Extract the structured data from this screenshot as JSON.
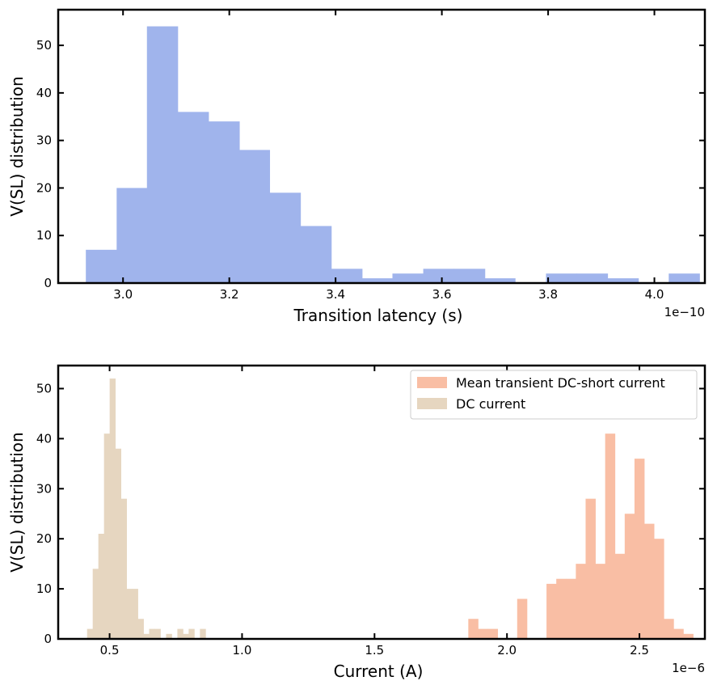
{
  "chart_data": [
    {
      "type": "bar",
      "xlabel": "Transition latency (s)",
      "ylabel": "V(SL) distribution",
      "x_offset_label": "1e−10",
      "xlim": [
        2.878,
        4.095
      ],
      "ylim": [
        0,
        57.5
      ],
      "xticks": [
        "3.0",
        "3.2",
        "3.4",
        "3.6",
        "3.8",
        "4.0"
      ],
      "yticks": [
        "0",
        "10",
        "20",
        "30",
        "40",
        "50"
      ],
      "bin_edges": [
        2.93,
        2.988,
        3.045,
        3.103,
        3.161,
        3.219,
        3.276,
        3.334,
        3.392,
        3.45,
        3.507,
        3.565,
        3.623,
        3.681,
        3.738,
        3.796,
        3.854,
        3.912,
        3.97,
        4.027,
        4.085
      ],
      "series": [
        {
          "color": "#a0b4ec",
          "values": [
            7,
            20,
            54,
            36,
            34,
            28,
            19,
            12,
            3,
            1,
            2,
            3,
            3,
            1,
            0,
            2,
            2,
            1,
            0,
            2
          ]
        }
      ]
    },
    {
      "type": "bar",
      "xlabel": "Current (A)",
      "ylabel": "V(SL) distribution",
      "x_offset_label": "1e−6",
      "xlim": [
        0.306,
        2.747
      ],
      "ylim": [
        0,
        54.6
      ],
      "xticks": [
        "0.5",
        "1.0",
        "1.5",
        "2.0",
        "2.5"
      ],
      "yticks": [
        "0",
        "10",
        "20",
        "30",
        "40",
        "50"
      ],
      "legend": {
        "position": "upper right"
      },
      "series": [
        {
          "name": "Mean transient DC-short current",
          "color": "#f9bea4",
          "bin_start": 1.854,
          "bin_width": 0.0369,
          "values": [
            4,
            2,
            2,
            0,
            0,
            8,
            0,
            0,
            11,
            12,
            12,
            15,
            28,
            15,
            41,
            17,
            25,
            36,
            23,
            20,
            4,
            2,
            1
          ]
        },
        {
          "name": "DC current",
          "color": "#e6d6c0",
          "bin_start": 0.415,
          "bin_width": 0.0213,
          "values": [
            2,
            14,
            21,
            41,
            52,
            38,
            28,
            10,
            10,
            4,
            1,
            2,
            2,
            0,
            1,
            0,
            2,
            1,
            2,
            0,
            2
          ]
        }
      ]
    }
  ]
}
